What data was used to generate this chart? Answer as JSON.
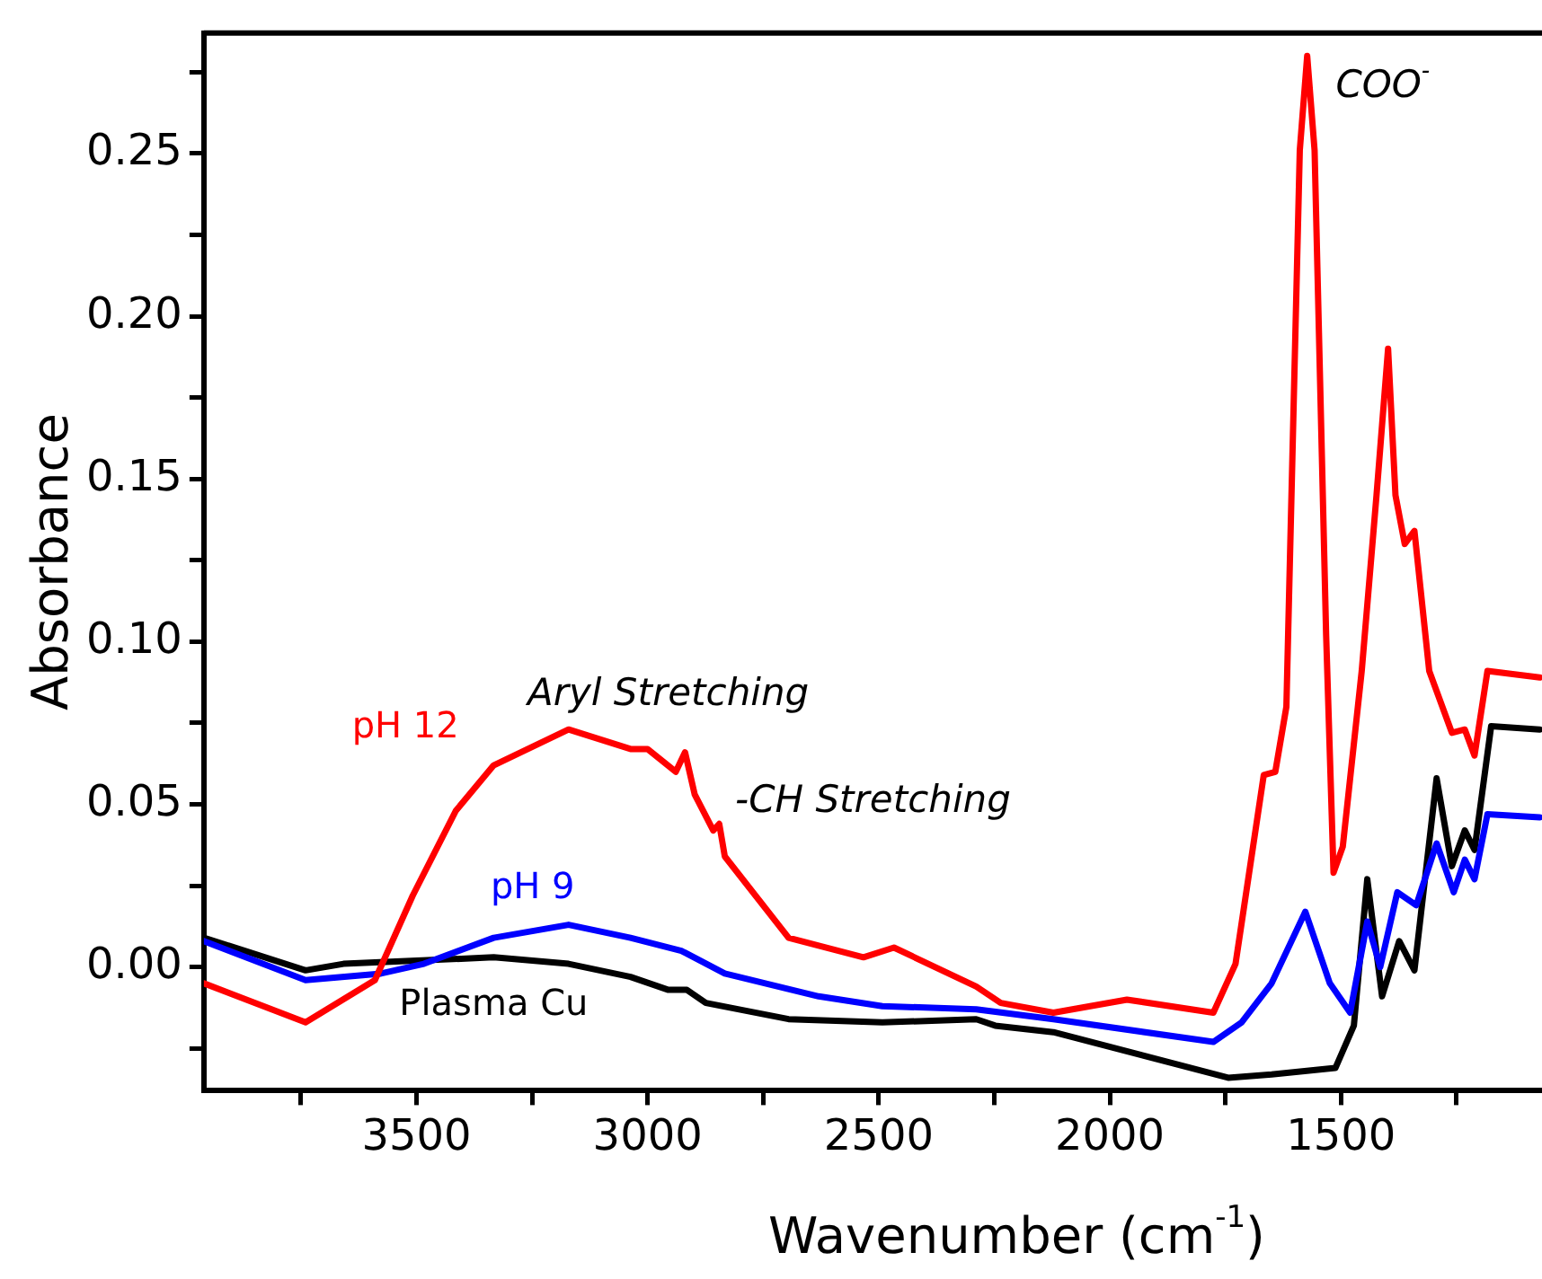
{
  "chart_data": {
    "type": "line",
    "xlabel": "Wavenumber (cm$^{-1}$)",
    "ylabel": "Absorbance",
    "xlim": [
      3960,
      1065
    ],
    "ylim": [
      -0.038,
      0.287
    ],
    "xticks": [
      {
        "value": 3750,
        "label": null
      },
      3500,
      {
        "value": 3250,
        "label": null
      },
      3000,
      {
        "value": 2750,
        "label": null
      },
      2500,
      {
        "value": 2250,
        "label": null
      },
      2000,
      {
        "value": 1750,
        "label": null
      },
      1500,
      {
        "value": 1250,
        "label": null
      }
    ],
    "yticks": [
      {
        "value": -0.025,
        "label": null
      },
      {
        "value": 0,
        "label": "0.00"
      },
      {
        "value": 0.025,
        "label": null
      },
      {
        "value": 0.05,
        "label": "0.05"
      },
      {
        "value": 0.075,
        "label": null
      },
      {
        "value": 0.1,
        "label": "0.10"
      },
      {
        "value": 0.125,
        "label": null
      },
      {
        "value": 0.15,
        "label": "0.15"
      },
      {
        "value": 0.175,
        "label": null
      },
      {
        "value": 0.2,
        "label": "0.20"
      },
      {
        "value": 0.225,
        "label": null
      },
      {
        "value": 0.25,
        "label": "0.25"
      },
      {
        "value": 0.275,
        "label": null
      }
    ],
    "grid": false,
    "legend": false,
    "marker": "none",
    "line_style": "solid",
    "series": [
      {
        "name": "pH 12",
        "color": "#ff0000",
        "x": [
          3960,
          3740,
          3590,
          3508,
          3415,
          3333,
          3171,
          3037,
          3000,
          2939,
          2919,
          2898,
          2858,
          2845,
          2833,
          2695,
          2533,
          2467,
          2289,
          2236,
          2122,
          1963,
          1776,
          1728,
          1667,
          1642,
          1618,
          1589,
          1573,
          1557,
          1532,
          1516,
          1496,
          1455,
          1423,
          1398,
          1382,
          1362,
          1341,
          1309,
          1260,
          1232,
          1211,
          1183,
          1070
        ],
        "values": [
          -0.005,
          -0.017,
          -0.004,
          0.022,
          0.048,
          0.062,
          0.073,
          0.067,
          0.067,
          0.06,
          0.066,
          0.053,
          0.042,
          0.044,
          0.034,
          0.009,
          0.003,
          0.006,
          -0.006,
          -0.011,
          -0.014,
          -0.01,
          -0.014,
          0.001,
          0.059,
          0.06,
          0.08,
          0.251,
          0.28,
          0.251,
          0.102,
          0.029,
          0.037,
          0.091,
          0.145,
          0.19,
          0.145,
          0.13,
          0.134,
          0.091,
          0.072,
          0.073,
          0.065,
          0.091,
          0.089
        ]
      },
      {
        "name": "pH 9",
        "color": "#0000ff",
        "x": [
          3960,
          3740,
          3577,
          3484,
          3333,
          3171,
          3037,
          2927,
          2833,
          2630,
          2492,
          2289,
          2122,
          1776,
          1715,
          1650,
          1577,
          1524,
          1480,
          1443,
          1415,
          1378,
          1337,
          1293,
          1256,
          1232,
          1211,
          1183,
          1070
        ],
        "values": [
          0.008,
          -0.004,
          -0.002,
          0.001,
          0.009,
          0.013,
          0.009,
          0.005,
          -0.002,
          -0.009,
          -0.012,
          -0.013,
          -0.016,
          -0.023,
          -0.017,
          -0.005,
          0.017,
          -0.005,
          -0.014,
          0.014,
          0.0,
          0.023,
          0.019,
          0.038,
          0.023,
          0.033,
          0.027,
          0.047,
          0.046
        ]
      },
      {
        "name": "Plasma Cu",
        "color": "#000000",
        "x": [
          3960,
          3740,
          3658,
          3333,
          3171,
          3037,
          2955,
          2915,
          2874,
          2695,
          2492,
          2289,
          2248,
          2122,
          1744,
          1650,
          1512,
          1472,
          1443,
          1411,
          1374,
          1341,
          1293,
          1260,
          1232,
          1211,
          1175,
          1070
        ],
        "values": [
          0.009,
          -0.001,
          0.001,
          0.003,
          0.001,
          -0.003,
          -0.007,
          -0.007,
          -0.011,
          -0.016,
          -0.017,
          -0.016,
          -0.018,
          -0.02,
          -0.034,
          -0.033,
          -0.031,
          -0.018,
          0.027,
          -0.009,
          0.008,
          -0.001,
          0.058,
          0.031,
          0.042,
          0.036,
          0.074,
          0.073
        ]
      }
    ],
    "annotations": [
      "Aryl Stretching",
      "-CH Stretching",
      "COO$^{-}$"
    ]
  }
}
